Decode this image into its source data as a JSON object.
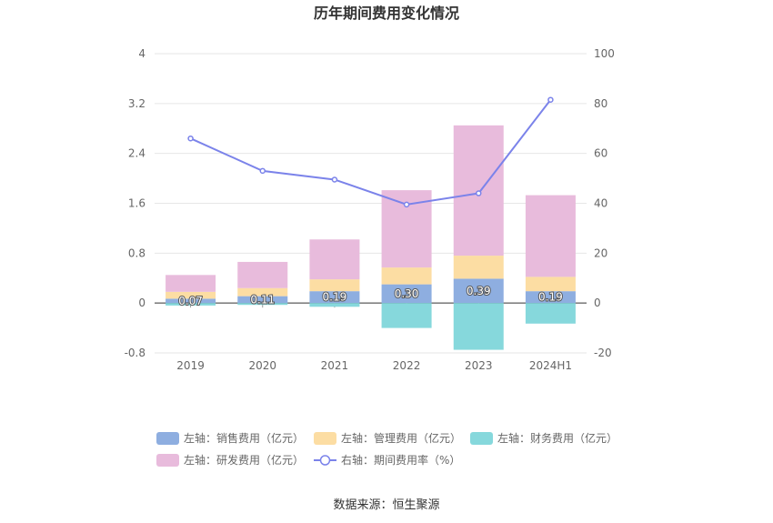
{
  "chart_data": {
    "type": "bar",
    "title": "历年期间费用变化情况",
    "categories": [
      "2019",
      "2020",
      "2021",
      "2022",
      "2023",
      "2024H1"
    ],
    "left_axis": {
      "ylim": [
        -0.8,
        4
      ],
      "ticks": [
        "4",
        "3.2",
        "2.4",
        "1.6",
        "0.8",
        "0",
        "-0.8"
      ],
      "tick_values": [
        4,
        3.2,
        2.4,
        1.6,
        0.8,
        0,
        -0.8
      ]
    },
    "right_axis": {
      "ylim": [
        -20,
        100
      ],
      "ticks": [
        "100",
        "80",
        "60",
        "40",
        "20",
        "0",
        "-20"
      ],
      "tick_values": [
        100,
        80,
        60,
        40,
        20,
        0,
        -20
      ]
    },
    "series": [
      {
        "name": "左轴：销售费用（亿元）",
        "axis": "left",
        "kind": "bar",
        "color": "#8eaee0",
        "values": [
          0.07,
          0.11,
          0.19,
          0.3,
          0.39,
          0.19
        ],
        "labels": [
          "0.07",
          "0.11",
          "0.19",
          "0.30",
          "0.39",
          "0.19"
        ]
      },
      {
        "name": "左轴：管理费用（亿元）",
        "axis": "left",
        "kind": "bar",
        "color": "#fcdda3",
        "values": [
          0.11,
          0.13,
          0.19,
          0.27,
          0.37,
          0.23
        ]
      },
      {
        "name": "左轴：财务费用（亿元）",
        "axis": "left",
        "kind": "bar",
        "color": "#86d8dc",
        "values": [
          -0.04,
          -0.03,
          -0.06,
          -0.4,
          -0.75,
          -0.33
        ]
      },
      {
        "name": "左轴：研发费用（亿元）",
        "axis": "left",
        "kind": "bar",
        "color": "#e8bbdc",
        "values": [
          0.27,
          0.42,
          0.64,
          1.24,
          2.09,
          1.31
        ]
      },
      {
        "name": "右轴：期间费用率（%）",
        "axis": "right",
        "kind": "line",
        "color": "#7b83ea",
        "values": [
          66,
          53,
          49.5,
          39.5,
          44,
          81.5
        ]
      }
    ],
    "legend_position": "bottom",
    "grid": true
  },
  "source": "数据来源：恒生聚源"
}
